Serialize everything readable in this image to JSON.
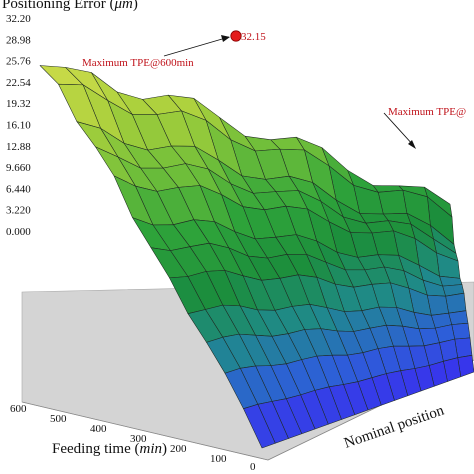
{
  "chart_data": {
    "type": "surface3d",
    "title": "",
    "zlabel": "Positioning Error (μm)",
    "zlabel_prefix": "Positioning Error (",
    "zlabel_unit": "μm",
    "zlabel_suffix": ")",
    "xlabel": "Feeding time (min)",
    "xlabel_prefix": "Feeding time (",
    "xlabel_unit": "min",
    "xlabel_suffix": ")",
    "ylabel": "Nominal position",
    "z_ticks": [
      "32.20",
      "28.98",
      "25.76",
      "22.54",
      "19.32",
      "16.10",
      "12.88",
      "9.660",
      "6.440",
      "3.220",
      "0.000"
    ],
    "x_ticks": [
      "600",
      "500",
      "400",
      "300",
      "200",
      "100",
      "0"
    ],
    "zlim": [
      0,
      32.2
    ],
    "xlim": [
      0,
      600
    ],
    "annotations": [
      {
        "text": "Maximum TPE@600min",
        "value_label": "32.15",
        "feeding_time": 600,
        "value": 32.15
      },
      {
        "text": "Maximum TPE@"
      }
    ],
    "colormap": [
      "#3a2cf0",
      "#2d5fd8",
      "#1f8a8a",
      "#1c8e3c",
      "#2fa43a",
      "#6fbe3a",
      "#a9d03c",
      "#c8da48"
    ]
  }
}
